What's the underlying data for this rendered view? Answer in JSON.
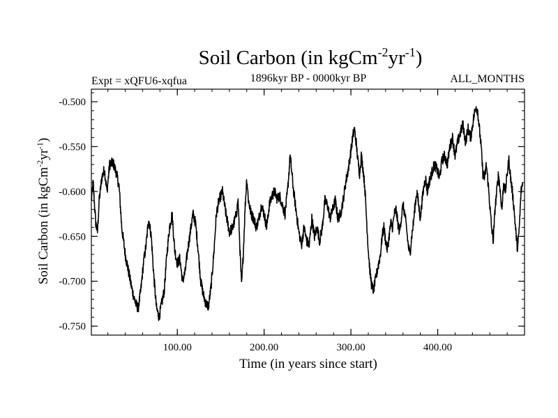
{
  "chart_data": {
    "type": "line",
    "title": {
      "main": "Soil Carbon (in kgCm",
      "sup1": "-2",
      "mid": "yr",
      "sup2": "-1",
      "close": ")"
    },
    "subtitle_left": "Expt = xQFU6-xqfua",
    "subtitle_center": "1896kyr BP - 0000kyr BP",
    "subtitle_right": "ALL_MONTHS",
    "xlabel": "Time (in years since start)",
    "ylabel": {
      "main": "Soil Carbon (in kgCm",
      "sup1": "-2",
      "mid": "yr",
      "sup2": "-1",
      "close": ")"
    },
    "xlim": [
      1,
      500
    ],
    "ylim": [
      -0.76,
      -0.486
    ],
    "x_ticks": [
      100,
      200,
      300,
      400
    ],
    "x_tick_labels": [
      "100.00",
      "200.00",
      "300.00",
      "400.00"
    ],
    "x_minor_step": 20,
    "y_ticks": [
      -0.5,
      -0.55,
      -0.6,
      -0.65,
      -0.7,
      -0.75
    ],
    "y_tick_labels": [
      "-0.500",
      "-0.550",
      "-0.600",
      "-0.650",
      "-0.700",
      "-0.750"
    ],
    "y_minor_step": 0.01,
    "series": [
      {
        "name": "Soil Carbon",
        "color": "#000000",
        "keyframes_x": [
          1,
          3,
          6,
          8,
          10,
          13,
          16,
          19,
          22,
          26,
          30,
          33,
          36,
          40,
          44,
          48,
          52,
          55,
          58,
          61,
          64,
          67,
          70,
          73,
          76,
          79,
          82,
          85,
          88,
          91,
          94,
          97,
          100,
          103,
          106,
          109,
          112,
          115,
          118,
          121,
          124,
          127,
          130,
          133,
          136,
          139,
          142,
          145,
          148,
          152,
          156,
          160,
          164,
          168,
          170,
          172,
          174,
          176,
          178,
          180,
          182,
          185,
          188,
          191,
          194,
          197,
          200,
          203,
          206,
          209,
          212,
          215,
          218,
          221,
          224,
          227,
          230,
          232,
          234,
          236,
          238,
          240,
          243,
          246,
          249,
          252,
          255,
          258,
          261,
          264,
          267,
          270,
          273,
          276,
          279,
          282,
          285,
          288,
          291,
          294,
          297,
          300,
          302,
          304,
          306,
          308,
          310,
          312,
          314,
          316,
          318,
          320,
          322,
          324,
          326,
          328,
          330,
          332,
          334,
          336,
          338,
          340,
          342,
          344,
          346,
          348,
          350,
          352,
          354,
          356,
          358,
          360,
          362,
          364,
          366,
          368,
          370,
          372,
          374,
          376,
          378,
          380,
          382,
          384,
          386,
          388,
          390,
          393,
          396,
          399,
          402,
          405,
          408,
          411,
          414,
          417,
          420,
          423,
          426,
          429,
          432,
          435,
          438,
          441,
          444,
          446,
          448,
          450,
          452,
          454,
          456,
          458,
          460,
          462,
          464,
          466,
          468,
          470,
          472,
          474,
          476,
          478,
          480,
          482,
          484,
          486,
          488,
          490,
          492,
          494,
          496,
          498,
          500
        ],
        "keyframes_y": [
          -0.61,
          -0.59,
          -0.635,
          -0.645,
          -0.61,
          -0.585,
          -0.575,
          -0.6,
          -0.57,
          -0.568,
          -0.58,
          -0.595,
          -0.64,
          -0.67,
          -0.69,
          -0.71,
          -0.725,
          -0.73,
          -0.71,
          -0.68,
          -0.66,
          -0.63,
          -0.65,
          -0.695,
          -0.73,
          -0.74,
          -0.725,
          -0.71,
          -0.67,
          -0.64,
          -0.625,
          -0.665,
          -0.68,
          -0.675,
          -0.7,
          -0.69,
          -0.665,
          -0.645,
          -0.625,
          -0.635,
          -0.665,
          -0.7,
          -0.715,
          -0.725,
          -0.728,
          -0.705,
          -0.67,
          -0.625,
          -0.61,
          -0.6,
          -0.625,
          -0.645,
          -0.64,
          -0.625,
          -0.61,
          -0.66,
          -0.705,
          -0.67,
          -0.62,
          -0.585,
          -0.61,
          -0.625,
          -0.63,
          -0.64,
          -0.63,
          -0.615,
          -0.625,
          -0.64,
          -0.615,
          -0.605,
          -0.6,
          -0.608,
          -0.605,
          -0.615,
          -0.625,
          -0.6,
          -0.56,
          -0.58,
          -0.6,
          -0.615,
          -0.63,
          -0.645,
          -0.66,
          -0.64,
          -0.655,
          -0.66,
          -0.63,
          -0.65,
          -0.64,
          -0.655,
          -0.64,
          -0.61,
          -0.615,
          -0.63,
          -0.62,
          -0.61,
          -0.63,
          -0.625,
          -0.61,
          -0.59,
          -0.575,
          -0.555,
          -0.54,
          -0.53,
          -0.545,
          -0.565,
          -0.58,
          -0.56,
          -0.575,
          -0.595,
          -0.63,
          -0.665,
          -0.69,
          -0.705,
          -0.71,
          -0.7,
          -0.69,
          -0.68,
          -0.67,
          -0.65,
          -0.64,
          -0.655,
          -0.665,
          -0.65,
          -0.635,
          -0.64,
          -0.625,
          -0.62,
          -0.635,
          -0.645,
          -0.63,
          -0.615,
          -0.625,
          -0.64,
          -0.66,
          -0.67,
          -0.65,
          -0.635,
          -0.615,
          -0.6,
          -0.615,
          -0.63,
          -0.61,
          -0.595,
          -0.585,
          -0.6,
          -0.59,
          -0.58,
          -0.57,
          -0.575,
          -0.585,
          -0.565,
          -0.56,
          -0.57,
          -0.55,
          -0.54,
          -0.56,
          -0.545,
          -0.535,
          -0.525,
          -0.545,
          -0.53,
          -0.54,
          -0.52,
          -0.505,
          -0.51,
          -0.53,
          -0.55,
          -0.58,
          -0.585,
          -0.57,
          -0.59,
          -0.615,
          -0.64,
          -0.655,
          -0.62,
          -0.6,
          -0.58,
          -0.6,
          -0.62,
          -0.59,
          -0.6,
          -0.58,
          -0.565,
          -0.585,
          -0.6,
          -0.62,
          -0.645,
          -0.665,
          -0.64,
          -0.6,
          -0.59
        ]
      }
    ],
    "noise_amplitude": 0.006
  }
}
